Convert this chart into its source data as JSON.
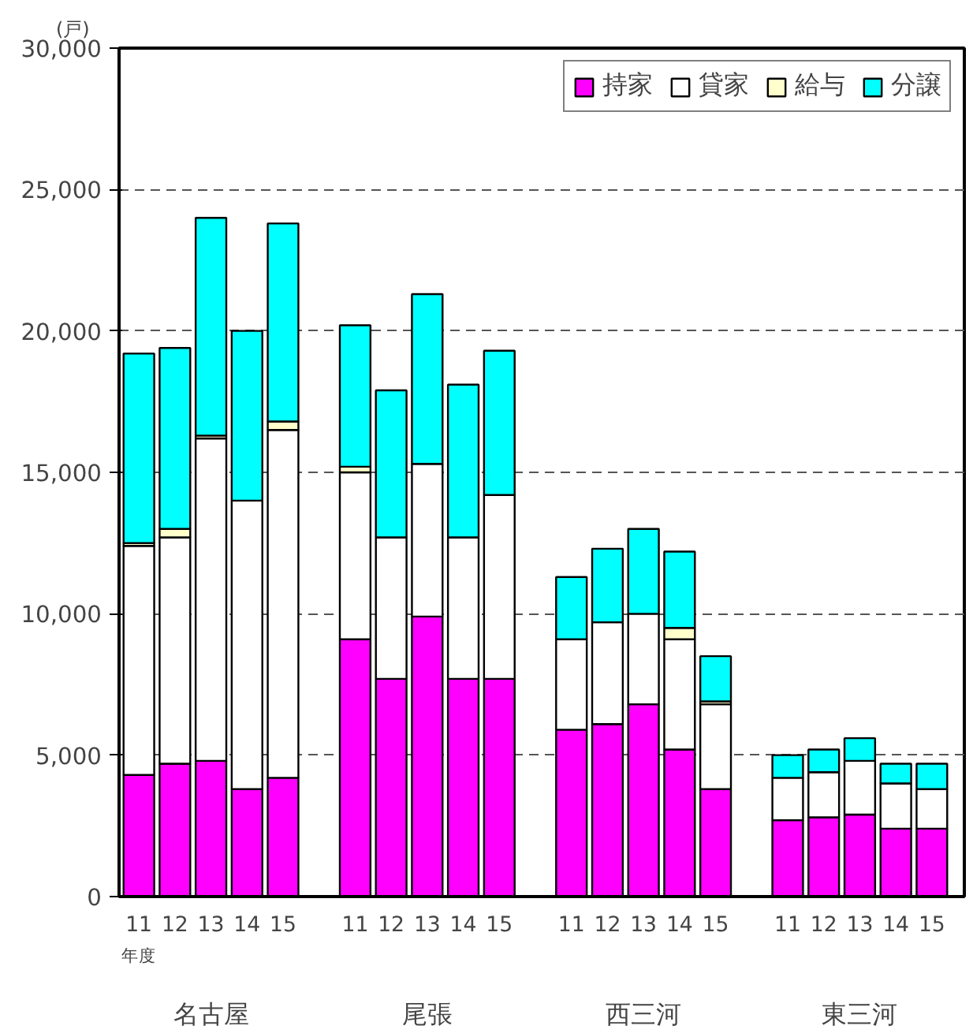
{
  "chart_data": {
    "type": "bar",
    "stacked": true,
    "ylabel": "(戸)",
    "categories": [
      "11",
      "12",
      "13",
      "14",
      "15",
      null,
      "11",
      "12",
      "13",
      "14",
      "15",
      null,
      "11",
      "12",
      "13",
      "14",
      "15",
      null,
      "11",
      "12",
      "13",
      "14",
      "15"
    ],
    "series": [
      {
        "name": "持家",
        "color": "#ff00ff",
        "values": [
          4300,
          4700,
          4800,
          3800,
          4200,
          null,
          9100,
          7700,
          9900,
          7700,
          7700,
          null,
          5900,
          6100,
          6800,
          5200,
          3800,
          null,
          2700,
          2800,
          2900,
          2400,
          2400
        ]
      },
      {
        "name": "貸家",
        "color": "#ffffff",
        "values": [
          8100,
          8000,
          11400,
          10200,
          12300,
          null,
          5900,
          5000,
          5400,
          5000,
          6500,
          null,
          3200,
          3600,
          3200,
          3900,
          3000,
          null,
          1500,
          1600,
          1900,
          1600,
          1400
        ]
      },
      {
        "name": "給与",
        "color": "#ffffcc",
        "values": [
          100,
          300,
          100,
          null,
          300,
          null,
          200,
          null,
          null,
          null,
          null,
          null,
          null,
          null,
          null,
          400,
          100,
          null,
          null,
          null,
          null,
          null,
          null
        ]
      },
      {
        "name": "分譲",
        "color": "#00ffff",
        "values": [
          6700,
          6400,
          7700,
          6000,
          7000,
          null,
          5000,
          5200,
          6000,
          5400,
          5100,
          null,
          2200,
          2600,
          3000,
          2700,
          1600,
          null,
          800,
          800,
          800,
          700,
          900
        ]
      }
    ],
    "annotations": [
      "年度",
      "名古屋",
      "尾張",
      "西三河",
      "東三河"
    ],
    "ylim": [
      0,
      30000
    ],
    "yticks": [
      0,
      {
        "value": 5000,
        "label": "5,000"
      },
      {
        "value": 10000,
        "label": "10,000"
      },
      {
        "value": 15000,
        "label": "15,000"
      },
      {
        "value": 20000,
        "label": "20,000"
      },
      {
        "value": 25000,
        "label": "25,000"
      },
      {
        "value": 30000,
        "label": "30,000"
      }
    ],
    "grid": "y",
    "legend": "top right"
  }
}
